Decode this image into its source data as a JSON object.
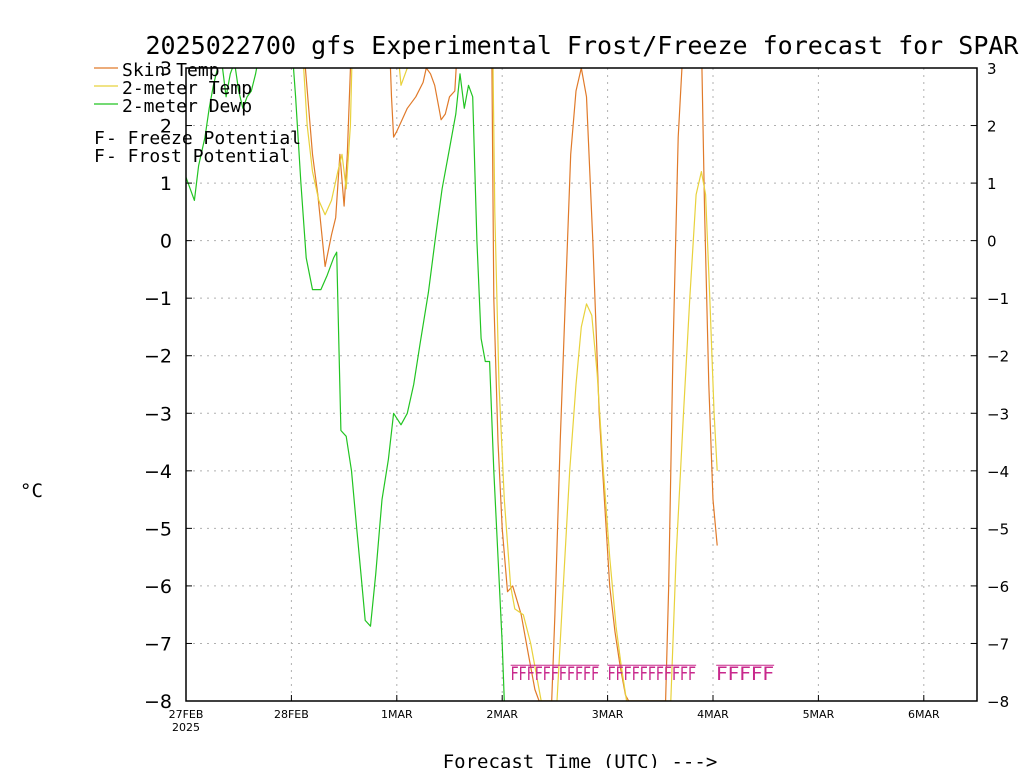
{
  "colors": {
    "skin_temp": "#e07a2a",
    "t2m": "#e8d23c",
    "dewp": "#22c422",
    "freeze": "#c8288c",
    "frost": "#4646d8",
    "grid": "#b0b0b0"
  },
  "legend": {
    "skin": "Skin Temp",
    "t2m": "2-meter Temp",
    "dewp": "2-meter Dewp",
    "freeze_letter": "F",
    "freeze_text": " - Freeze Potential",
    "frost_letter": "F",
    "frost_text": " - Frost Potential"
  },
  "chart_data": {
    "type": "line",
    "title": "2025022700 gfs Experimental Frost/Freeze forecast for SPAR",
    "xlabel": "Forecast Time (UTC) --->",
    "ylabel": "°C",
    "ylim": [
      -8,
      3
    ],
    "yticks": [
      3,
      2,
      1,
      0,
      -1,
      -2,
      -3,
      -4,
      -5,
      -6,
      -7,
      -8
    ],
    "xlim_days": [
      0,
      7.4
    ],
    "xticks": [
      {
        "day": 0,
        "label": "27FEB",
        "sub": "2025"
      },
      {
        "day": 1,
        "label": "28FEB"
      },
      {
        "day": 2,
        "label": "1MAR"
      },
      {
        "day": 3,
        "label": "2MAR"
      },
      {
        "day": 4,
        "label": "3MAR"
      },
      {
        "day": 5,
        "label": "4MAR"
      },
      {
        "day": 6,
        "label": "5MAR"
      },
      {
        "day": 7,
        "label": "6MAR"
      }
    ],
    "grid": true,
    "legend_position": "top-left",
    "series": [
      {
        "name": "Skin Temp",
        "color_key": "skin_temp",
        "points": [
          [
            1.11,
            3.5
          ],
          [
            1.2,
            1.5
          ],
          [
            1.25,
            0.8
          ],
          [
            1.32,
            -0.45
          ],
          [
            1.38,
            0.1
          ],
          [
            1.42,
            0.4
          ],
          [
            1.46,
            1.5
          ],
          [
            1.5,
            0.6
          ],
          [
            1.53,
            1.5
          ],
          [
            1.57,
            3.5
          ],
          [
            1.93,
            3.5
          ],
          [
            1.95,
            2.5
          ],
          [
            1.97,
            1.8
          ],
          [
            2.0,
            1.9
          ],
          [
            2.05,
            2.1
          ],
          [
            2.1,
            2.3
          ],
          [
            2.18,
            2.5
          ],
          [
            2.25,
            2.75
          ],
          [
            2.28,
            3.0
          ],
          [
            2.32,
            2.9
          ],
          [
            2.36,
            2.7
          ],
          [
            2.4,
            2.3
          ],
          [
            2.42,
            2.1
          ],
          [
            2.46,
            2.2
          ],
          [
            2.5,
            2.5
          ],
          [
            2.55,
            2.6
          ],
          [
            2.58,
            3.5
          ],
          [
            2.9,
            3.5
          ],
          [
            2.92,
            -1.0
          ],
          [
            2.96,
            -3.5
          ],
          [
            3.0,
            -5.0
          ],
          [
            3.05,
            -6.1
          ],
          [
            3.1,
            -6.0
          ],
          [
            3.18,
            -6.5
          ],
          [
            3.25,
            -7.2
          ],
          [
            3.31,
            -7.8
          ],
          [
            3.35,
            -8.0
          ],
          [
            3.47,
            -8.0
          ],
          [
            3.5,
            -6.5
          ],
          [
            3.55,
            -3.5
          ],
          [
            3.6,
            -1.0
          ],
          [
            3.65,
            1.5
          ],
          [
            3.7,
            2.6
          ],
          [
            3.75,
            3.0
          ],
          [
            3.8,
            2.5
          ],
          [
            3.86,
            0.0
          ],
          [
            3.92,
            -3.0
          ],
          [
            3.97,
            -4.5
          ],
          [
            4.02,
            -6.0
          ],
          [
            4.07,
            -6.8
          ],
          [
            4.12,
            -7.4
          ],
          [
            4.17,
            -7.9
          ],
          [
            4.2,
            -8.0
          ],
          [
            4.55,
            -8.0
          ],
          [
            4.58,
            -6.0
          ],
          [
            4.62,
            -2.0
          ],
          [
            4.67,
            1.8
          ],
          [
            4.72,
            3.5
          ],
          [
            4.89,
            3.5
          ],
          [
            4.92,
            0.5
          ],
          [
            4.96,
            -2.5
          ],
          [
            5.0,
            -4.5
          ],
          [
            5.04,
            -5.3
          ]
        ]
      },
      {
        "name": "2-meter Temp",
        "color_key": "t2m",
        "points": [
          [
            1.1,
            3.5
          ],
          [
            1.15,
            2.0
          ],
          [
            1.2,
            1.2
          ],
          [
            1.26,
            0.7
          ],
          [
            1.32,
            0.45
          ],
          [
            1.38,
            0.7
          ],
          [
            1.44,
            1.2
          ],
          [
            1.48,
            1.5
          ],
          [
            1.52,
            0.9
          ],
          [
            1.56,
            2.0
          ],
          [
            1.58,
            3.5
          ],
          [
            2.0,
            3.5
          ],
          [
            2.04,
            2.7
          ],
          [
            2.1,
            3.0
          ],
          [
            2.22,
            3.5
          ],
          [
            2.91,
            3.5
          ],
          [
            2.93,
            0.5
          ],
          [
            2.97,
            -2.5
          ],
          [
            3.02,
            -4.5
          ],
          [
            3.08,
            -6.0
          ],
          [
            3.12,
            -6.4
          ],
          [
            3.2,
            -6.5
          ],
          [
            3.27,
            -7.0
          ],
          [
            3.33,
            -7.6
          ],
          [
            3.37,
            -8.0
          ],
          [
            3.52,
            -8.0
          ],
          [
            3.58,
            -6.0
          ],
          [
            3.64,
            -4.0
          ],
          [
            3.7,
            -2.5
          ],
          [
            3.75,
            -1.5
          ],
          [
            3.8,
            -1.1
          ],
          [
            3.85,
            -1.3
          ],
          [
            3.9,
            -2.3
          ],
          [
            3.96,
            -4.0
          ],
          [
            4.02,
            -5.5
          ],
          [
            4.08,
            -6.7
          ],
          [
            4.13,
            -7.4
          ],
          [
            4.18,
            -8.0
          ],
          [
            4.6,
            -8.0
          ],
          [
            4.65,
            -5.5
          ],
          [
            4.72,
            -3.0
          ],
          [
            4.78,
            -1.0
          ],
          [
            4.84,
            0.8
          ],
          [
            4.89,
            1.2
          ],
          [
            4.93,
            0.8
          ],
          [
            4.97,
            -1.0
          ],
          [
            5.01,
            -3.0
          ],
          [
            5.04,
            -4.0
          ]
        ]
      },
      {
        "name": "2-meter Dewp",
        "color_key": "dewp",
        "points": [
          [
            0.0,
            1.1
          ],
          [
            0.04,
            0.9
          ],
          [
            0.08,
            0.7
          ],
          [
            0.12,
            1.3
          ],
          [
            0.18,
            1.8
          ],
          [
            0.22,
            2.3
          ],
          [
            0.26,
            2.7
          ],
          [
            0.3,
            3.0
          ],
          [
            0.34,
            3.1
          ],
          [
            0.38,
            2.5
          ],
          [
            0.42,
            2.9
          ],
          [
            0.46,
            3.1
          ],
          [
            0.5,
            2.6
          ],
          [
            0.54,
            2.3
          ],
          [
            0.58,
            2.5
          ],
          [
            0.62,
            2.6
          ],
          [
            0.66,
            2.9
          ],
          [
            0.72,
            3.5
          ],
          [
            1.0,
            3.5
          ],
          [
            1.04,
            2.5
          ],
          [
            1.09,
            1.0
          ],
          [
            1.14,
            -0.3
          ],
          [
            1.2,
            -0.85
          ],
          [
            1.28,
            -0.85
          ],
          [
            1.34,
            -0.6
          ],
          [
            1.4,
            -0.3
          ],
          [
            1.43,
            -0.2
          ],
          [
            1.47,
            -3.3
          ],
          [
            1.52,
            -3.4
          ],
          [
            1.57,
            -4.0
          ],
          [
            1.62,
            -5.0
          ],
          [
            1.66,
            -5.8
          ],
          [
            1.7,
            -6.6
          ],
          [
            1.75,
            -6.7
          ],
          [
            1.8,
            -5.8
          ],
          [
            1.86,
            -4.5
          ],
          [
            1.92,
            -3.8
          ],
          [
            1.97,
            -3.0
          ],
          [
            2.04,
            -3.2
          ],
          [
            2.1,
            -3.0
          ],
          [
            2.16,
            -2.5
          ],
          [
            2.22,
            -1.8
          ],
          [
            2.3,
            -0.9
          ],
          [
            2.37,
            0.1
          ],
          [
            2.43,
            0.9
          ],
          [
            2.5,
            1.6
          ],
          [
            2.56,
            2.2
          ],
          [
            2.6,
            2.9
          ],
          [
            2.64,
            2.3
          ],
          [
            2.68,
            2.7
          ],
          [
            2.72,
            2.5
          ],
          [
            2.76,
            0.0
          ],
          [
            2.8,
            -1.7
          ],
          [
            2.84,
            -2.1
          ],
          [
            2.88,
            -2.1
          ],
          [
            2.92,
            -4.0
          ],
          [
            2.96,
            -5.5
          ],
          [
            3.0,
            -7.0
          ],
          [
            3.02,
            -8.0
          ]
        ]
      }
    ],
    "freeze_marks": [
      {
        "text": "FFFFFFFFFFF",
        "start_day": 3.08,
        "end_day": 3.92
      },
      {
        "text": "FFFFFFFFFFF",
        "start_day": 4.0,
        "end_day": 4.84
      },
      {
        "text": "FFFFF",
        "start_day": 5.03,
        "end_day": 5.58
      }
    ],
    "freeze_mark_level": -7.5
  }
}
